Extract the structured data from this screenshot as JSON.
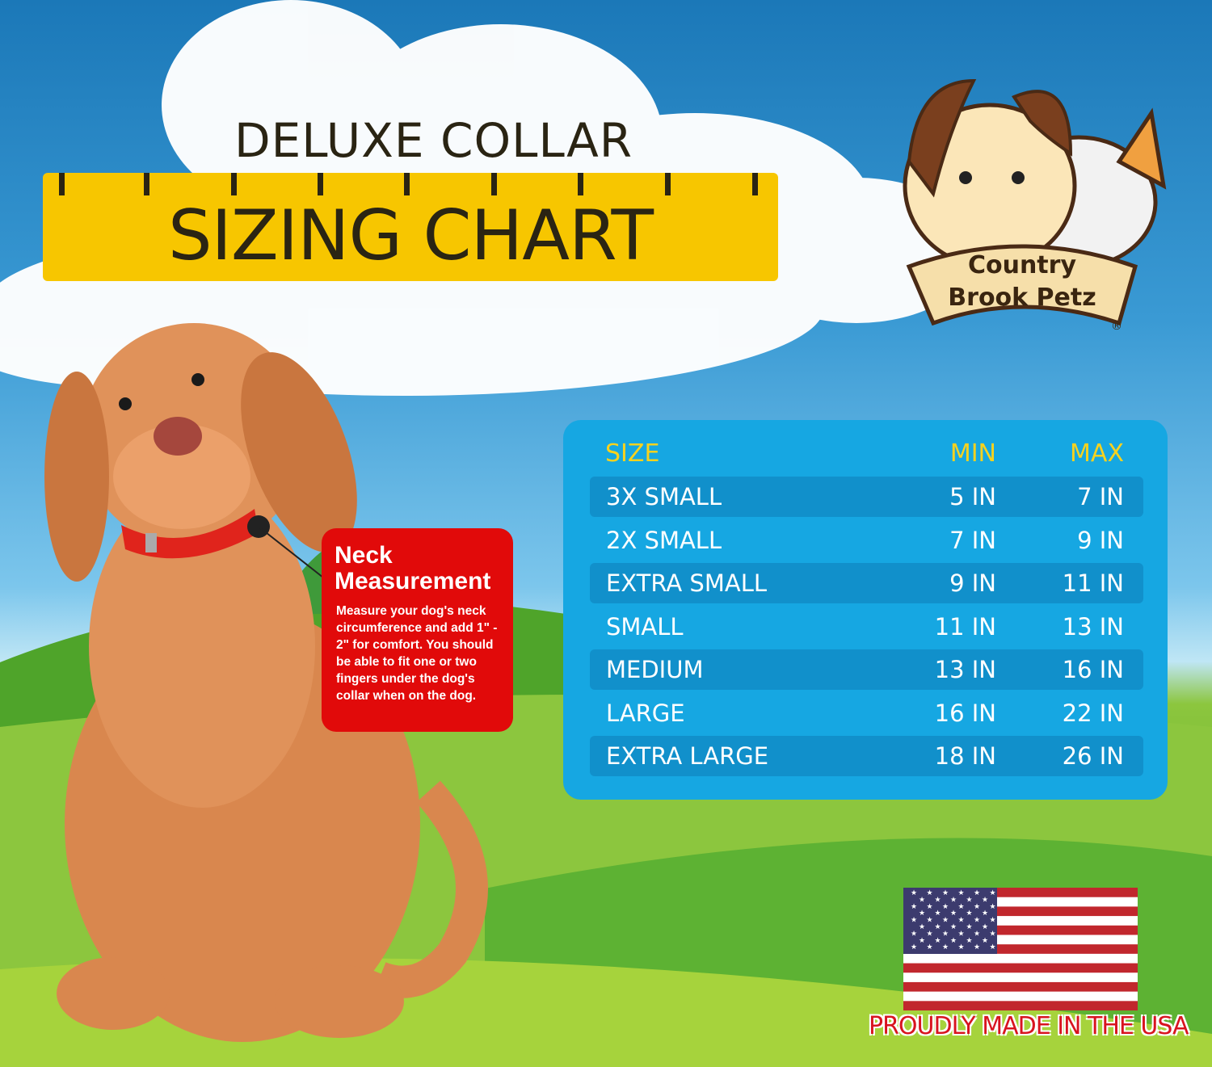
{
  "header": {
    "subtitle": "DELUXE COLLAR",
    "title": "SIZING CHART"
  },
  "brand": {
    "name_line1": "Country",
    "name_line2": "Brook Petz",
    "registered_mark": "®"
  },
  "note": {
    "title": "Neck Measurement",
    "body": "Measure your dog's neck circumference and add 1\" - 2\" for comfort. You should be able to fit one or two fingers under the dog's collar when on the dog."
  },
  "table": {
    "columns": [
      "SIZE",
      "MIN",
      "MAX"
    ],
    "rows": [
      {
        "size": "3X SMALL",
        "min": "5 IN",
        "max": "7 IN"
      },
      {
        "size": "2X SMALL",
        "min": "7 IN",
        "max": "9 IN"
      },
      {
        "size": "EXTRA SMALL",
        "min": "9 IN",
        "max": "11 IN"
      },
      {
        "size": "SMALL",
        "min": "11 IN",
        "max": "13 IN"
      },
      {
        "size": "MEDIUM",
        "min": "13 IN",
        "max": "16 IN"
      },
      {
        "size": "LARGE",
        "min": "16 IN",
        "max": "22 IN"
      },
      {
        "size": "EXTRA LARGE",
        "min": "18 IN",
        "max": "26 IN"
      }
    ]
  },
  "footer": {
    "made_in": "PROUDLY MADE IN THE USA",
    "flag_icon": "us-flag-icon"
  },
  "colors": {
    "ruler": "#f7c600",
    "panel": "#16a7e2",
    "header_text": "#f7d21e",
    "note_bg": "#e10a0a",
    "collar": "#e0241c"
  }
}
